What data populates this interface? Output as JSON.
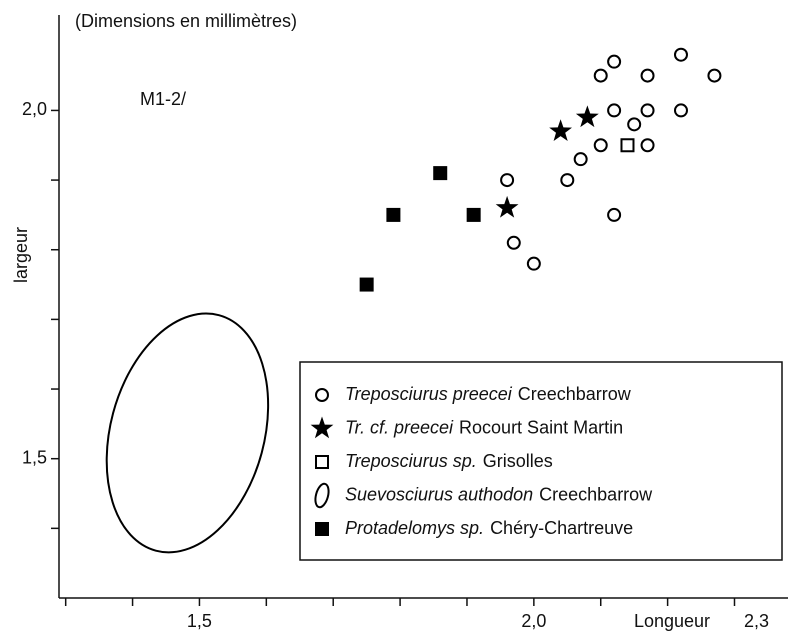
{
  "chart_data": {
    "type": "scatter",
    "title": "(Dimensions en millimètres)",
    "annotation": "M1-2/",
    "x_label": "Longueur",
    "y_label": "largeur",
    "xlim": [
      1.29,
      2.38
    ],
    "ylim": [
      1.3,
      2.137
    ],
    "xticks": [
      {
        "value": 1.5,
        "label": "1,5"
      },
      {
        "value": 2.0,
        "label": "2,0"
      },
      {
        "value": 2.3,
        "label": "2,3"
      }
    ],
    "xminor_ticks": [
      1.3,
      1.4,
      1.6,
      1.7,
      1.8,
      1.9,
      2.1,
      2.2
    ],
    "yticks": [
      {
        "value": 1.5,
        "label": "1,5"
      },
      {
        "value": 2.0,
        "label": "2,0"
      }
    ],
    "yminor_ticks": [
      1.4,
      1.6,
      1.7,
      1.8,
      1.9
    ],
    "legend": "bottom-right",
    "series": [
      {
        "name": [
          "Treposciurus preecei",
          "Creechbarrow"
        ],
        "marker": "circle",
        "color": "#000000",
        "x": [
          2.22,
          2.12,
          2.1,
          2.17,
          2.27,
          2.12,
          2.17,
          2.22,
          2.15,
          2.1,
          2.17,
          2.07,
          1.96,
          2.05,
          2.12,
          1.97,
          2.0
        ],
        "values": [
          2.08,
          2.07,
          2.05,
          2.05,
          2.05,
          2.0,
          2.0,
          2.0,
          1.98,
          1.95,
          1.95,
          1.93,
          1.9,
          1.9,
          1.85,
          1.81,
          1.78
        ]
      },
      {
        "name": [
          "Tr. cf. preecei",
          "Rocourt Saint Martin"
        ],
        "marker": "star",
        "color": "#000000",
        "x": [
          2.04,
          2.08,
          1.96
        ],
        "values": [
          1.97,
          1.99,
          1.86
        ]
      },
      {
        "name": [
          "Treposciurus sp.",
          "Grisolles"
        ],
        "marker": "open-square",
        "color": "#000000",
        "x": [
          2.14
        ],
        "values": [
          1.95
        ]
      },
      {
        "name": [
          "Suevosciurus authodon",
          "Creechbarrow"
        ],
        "marker": "ellipse",
        "color": "#000000",
        "x": [
          1.482
        ],
        "values": [
          1.537
        ],
        "width": 0.23,
        "height": 0.35,
        "angle": 15
      },
      {
        "name": [
          "Protadelomys sp.",
          "Chéry-Chartreuve"
        ],
        "marker": "filled-square",
        "color": "#000000",
        "x": [
          1.86,
          1.79,
          1.91,
          1.75
        ],
        "values": [
          1.91,
          1.85,
          1.85,
          1.75
        ]
      }
    ]
  }
}
